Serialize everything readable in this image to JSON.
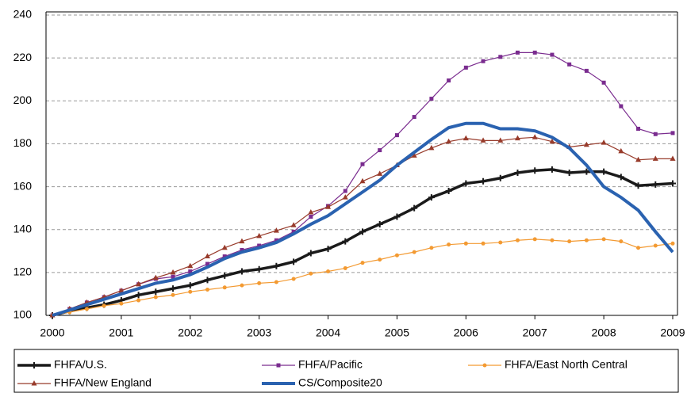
{
  "chart_data": {
    "type": "line",
    "x": [
      2000,
      2000.25,
      2000.5,
      2000.75,
      2001,
      2001.25,
      2001.5,
      2001.75,
      2002,
      2002.25,
      2002.5,
      2002.75,
      2003,
      2003.25,
      2003.5,
      2003.75,
      2004,
      2004.25,
      2004.5,
      2004.75,
      2005,
      2005.25,
      2005.5,
      2005.75,
      2006,
      2006.25,
      2006.5,
      2006.75,
      2007,
      2007.25,
      2007.5,
      2007.75,
      2008,
      2008.25,
      2008.5,
      2008.75,
      2009
    ],
    "xlim": [
      2000,
      2009
    ],
    "xticks": [
      2000,
      2001,
      2002,
      2003,
      2004,
      2005,
      2006,
      2007,
      2008,
      2009
    ],
    "ylim": [
      100,
      240
    ],
    "yticks": [
      100,
      120,
      140,
      160,
      180,
      200,
      220,
      240
    ],
    "grid": true,
    "series": [
      {
        "name": "FHFA/U.S.",
        "color": "#1a1a1a",
        "marker": "plus",
        "values": [
          100,
          102,
          103.5,
          105,
          107,
          109.5,
          111,
          112.5,
          114,
          116.5,
          118.5,
          120.5,
          121.5,
          123,
          125,
          129,
          131,
          134.5,
          139,
          142.5,
          146,
          150,
          155,
          158,
          161.5,
          162.5,
          164,
          166.5,
          167.5,
          168,
          166.5,
          167,
          167,
          164.5,
          160.5,
          161,
          161.5
        ]
      },
      {
        "name": "FHFA/Pacific",
        "color": "#7a2c8f",
        "marker": "square",
        "values": [
          100,
          103,
          106,
          108.5,
          111.5,
          114.5,
          117,
          118,
          120.5,
          124,
          127.5,
          130.5,
          132.5,
          135,
          139,
          146,
          151,
          158,
          170.5,
          177,
          184,
          192.5,
          201,
          209.5,
          215.5,
          218.5,
          220.5,
          222.5,
          222.5,
          221.5,
          217,
          214,
          208.5,
          197.5,
          187,
          184.5,
          185
        ]
      },
      {
        "name": "FHFA/East North Central",
        "color": "#f39a32",
        "marker": "circle",
        "values": [
          100,
          101.5,
          103,
          104.5,
          105.5,
          107,
          108.5,
          109.5,
          111,
          112,
          113,
          114,
          115,
          115.5,
          117,
          119.5,
          120.5,
          122,
          124.5,
          126,
          128,
          129.5,
          131.5,
          133,
          133.5,
          133.5,
          134,
          135,
          135.5,
          135,
          134.5,
          135,
          135.5,
          134.5,
          131.5,
          132.5,
          133.5
        ]
      },
      {
        "name": "FHFA/New England",
        "color": "#983b2b",
        "marker": "triangle",
        "values": [
          100,
          103,
          106,
          108.5,
          111.5,
          114.5,
          117.5,
          120,
          123,
          127.5,
          131.5,
          134.5,
          137,
          139.5,
          142,
          148,
          150.5,
          155,
          162.5,
          166,
          170,
          174.5,
          178,
          181,
          182.5,
          181.5,
          181.5,
          182.5,
          183,
          181,
          178.5,
          179.5,
          180.5,
          176.5,
          172.5,
          173,
          173
        ]
      },
      {
        "name": "CS/Composite20",
        "color": "#2a62b0",
        "marker": "none",
        "values": [
          100,
          102.5,
          105,
          107.5,
          110,
          112.5,
          115,
          116.5,
          119,
          122.5,
          126.5,
          129.5,
          131.5,
          134,
          138,
          142.5,
          146.5,
          152,
          157.5,
          163,
          170,
          176,
          182,
          187.5,
          189.5,
          189.5,
          187,
          187,
          186,
          183,
          178,
          170,
          160,
          155,
          149,
          139,
          129.5
        ]
      }
    ]
  }
}
